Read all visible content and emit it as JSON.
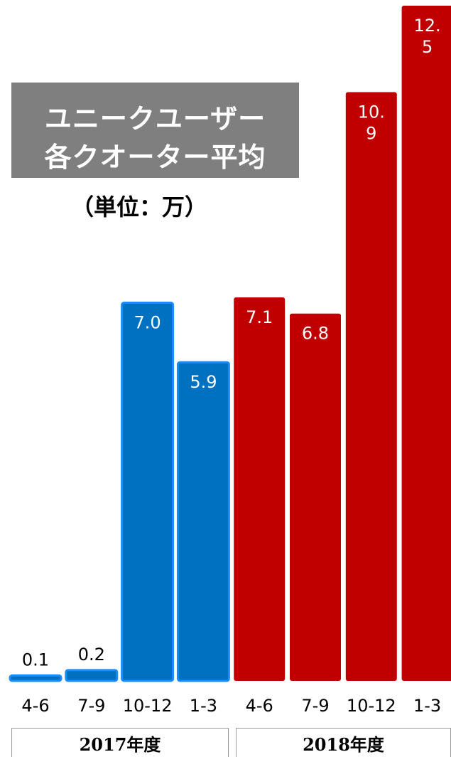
{
  "title": {
    "line1": "ユニークユーザー",
    "line2": "各クオーター平均"
  },
  "unit_label": "（単位：万）",
  "colors": {
    "fy2017": "#0070c0",
    "fy2017_edge": "#1a8cff",
    "fy2018": "#c00000",
    "title_bg": "#7f7f7f"
  },
  "chart_data": {
    "type": "bar",
    "categories": [
      "4-6",
      "7-9",
      "10-12",
      "1-3",
      "4-6",
      "7-9",
      "10-12",
      "1-3"
    ],
    "groups": [
      {
        "name": "2017年度",
        "categories": [
          "4-6",
          "7-9",
          "10-12",
          "1-3"
        ]
      },
      {
        "name": "2018年度",
        "categories": [
          "4-6",
          "7-9",
          "10-12",
          "1-3"
        ]
      }
    ],
    "values": [
      0.1,
      0.2,
      7.0,
      5.9,
      7.1,
      6.8,
      10.9,
      12.5
    ],
    "value_labels": [
      "0.1",
      "0.2",
      "7.0",
      "5.9",
      "7.1",
      "6.8",
      "10.\n9",
      "12.\n5"
    ],
    "bar_group": [
      "fy2017",
      "fy2017",
      "fy2017",
      "fy2017",
      "fy2018",
      "fy2018",
      "fy2018",
      "fy2018"
    ],
    "ylim": [
      0,
      12.5
    ],
    "grid": false,
    "legend": "none"
  },
  "years": {
    "fy2017": "2017年度",
    "fy2018": "2018年度"
  }
}
